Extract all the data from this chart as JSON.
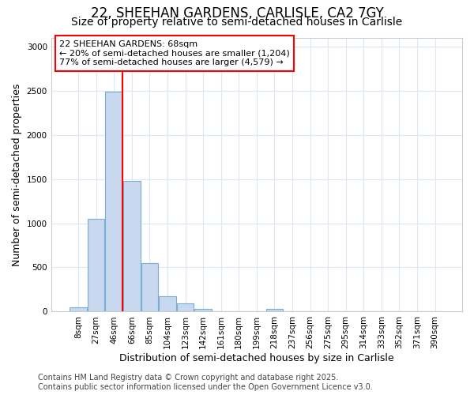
{
  "title": "22, SHEEHAN GARDENS, CARLISLE, CA2 7GY",
  "subtitle": "Size of property relative to semi-detached houses in Carlisle",
  "xlabel": "Distribution of semi-detached houses by size in Carlisle",
  "ylabel": "Number of semi-detached properties",
  "categories": [
    "8sqm",
    "27sqm",
    "46sqm",
    "66sqm",
    "85sqm",
    "104sqm",
    "123sqm",
    "142sqm",
    "161sqm",
    "180sqm",
    "199sqm",
    "218sqm",
    "237sqm",
    "256sqm",
    "275sqm",
    "295sqm",
    "314sqm",
    "333sqm",
    "352sqm",
    "371sqm",
    "390sqm"
  ],
  "values": [
    50,
    1050,
    2490,
    1480,
    550,
    170,
    90,
    30,
    0,
    0,
    0,
    30,
    0,
    0,
    0,
    0,
    0,
    0,
    0,
    0,
    0
  ],
  "bar_color": "#c8d8ee",
  "bar_edgecolor": "#7aadd4",
  "redline_x": 2.5,
  "annotation_title": "22 SHEEHAN GARDENS: 68sqm",
  "annotation_line1": "← 20% of semi-detached houses are smaller (1,204)",
  "annotation_line2": "77% of semi-detached houses are larger (4,579) →",
  "ylim": [
    0,
    3100
  ],
  "yticks": [
    0,
    500,
    1000,
    1500,
    2000,
    2500,
    3000
  ],
  "footer1": "Contains HM Land Registry data © Crown copyright and database right 2025.",
  "footer2": "Contains public sector information licensed under the Open Government Licence v3.0.",
  "bg_color": "#ffffff",
  "plot_bg_color": "#ffffff",
  "title_fontsize": 12,
  "subtitle_fontsize": 10,
  "axis_label_fontsize": 9,
  "tick_fontsize": 7.5,
  "footer_fontsize": 7,
  "grid_color": "#dde8f5"
}
